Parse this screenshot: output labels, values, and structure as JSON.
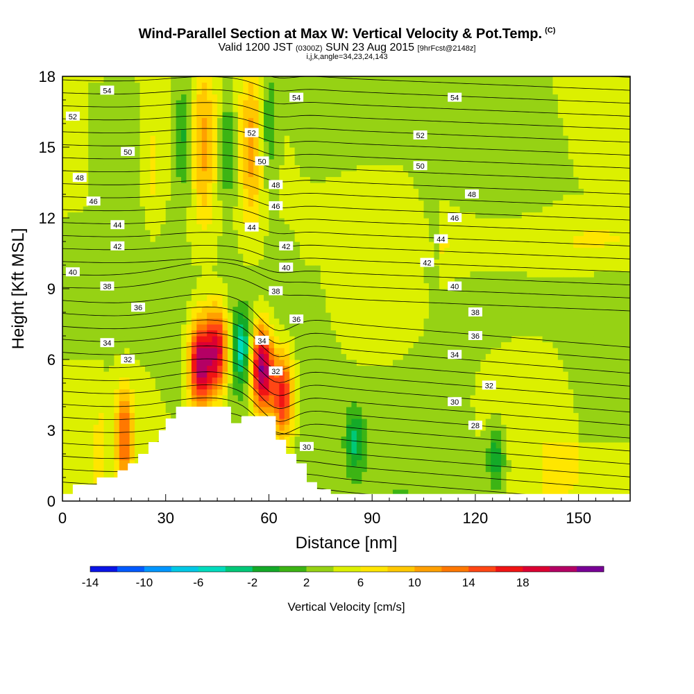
{
  "header": {
    "title": "Wind-Parallel Section at Max W: Vertical Velocity & Pot.Temp.",
    "copyright": "(C)",
    "valid_main": "Valid 1200 JST",
    "valid_utc": "(0300Z)",
    "valid_date": "SUN 23 Aug 2015",
    "forecast": "[9hrFcst@2148z]",
    "indices": "i,j,k,angle=34,23,24,143"
  },
  "chart_data": {
    "type": "heatmap",
    "title": "Wind-Parallel Section at Max W: Vertical Velocity & Pot.Temp.",
    "xlabel": "Distance [nm]",
    "ylabel": "Height [Kft MSL]",
    "xlim": [
      0,
      165
    ],
    "ylim": [
      0,
      18
    ],
    "x_ticks": [
      0,
      30,
      60,
      90,
      120,
      150
    ],
    "y_ticks": [
      0,
      3,
      6,
      9,
      12,
      15,
      18
    ],
    "colorbar": {
      "label": "Vertical Velocity [cm/s]",
      "ticks": [
        -14,
        -10,
        -6,
        -2,
        2,
        6,
        10,
        14,
        18
      ],
      "colors": [
        "#0a14e6",
        "#005aff",
        "#0096ff",
        "#00c8e6",
        "#00dcbe",
        "#00c878",
        "#14aa28",
        "#3cb414",
        "#96d214",
        "#dcf000",
        "#ffe600",
        "#ffc800",
        "#ffa000",
        "#ff7800",
        "#ff4614",
        "#f01414",
        "#dc0032",
        "#b40064",
        "#780096"
      ]
    },
    "velocity_features": [
      {
        "x": 40,
        "z": 5.8,
        "w": 18,
        "sign": "up"
      },
      {
        "x": 45,
        "z": 6.4,
        "w": 16,
        "sign": "up"
      },
      {
        "x": 58,
        "z": 5.6,
        "w": 20,
        "sign": "up"
      },
      {
        "x": 64,
        "z": 4.5,
        "w": 14,
        "sign": "up"
      },
      {
        "x": 52,
        "z": 6.5,
        "w": -8,
        "sign": "down"
      },
      {
        "x": 85,
        "z": 2.6,
        "w": -6,
        "sign": "down"
      },
      {
        "x": 126,
        "z": 1.8,
        "w": -6,
        "sign": "down"
      },
      {
        "x": 18,
        "z": 2.8,
        "w": 10,
        "sign": "up"
      }
    ],
    "theta_labels": [
      {
        "v": "54",
        "x": 13,
        "z": 17.4
      },
      {
        "v": "54",
        "x": 68,
        "z": 17.1
      },
      {
        "v": "54",
        "x": 114,
        "z": 17.1
      },
      {
        "v": "52",
        "x": 3,
        "z": 16.3
      },
      {
        "v": "52",
        "x": 55,
        "z": 15.6
      },
      {
        "v": "52",
        "x": 104,
        "z": 15.5
      },
      {
        "v": "50",
        "x": 19,
        "z": 14.8
      },
      {
        "v": "50",
        "x": 58,
        "z": 14.4
      },
      {
        "v": "50",
        "x": 104,
        "z": 14.2
      },
      {
        "v": "48",
        "x": 5,
        "z": 13.7
      },
      {
        "v": "48",
        "x": 62,
        "z": 13.4
      },
      {
        "v": "48",
        "x": 119,
        "z": 13.0
      },
      {
        "v": "46",
        "x": 9,
        "z": 12.7
      },
      {
        "v": "46",
        "x": 62,
        "z": 12.5
      },
      {
        "v": "46",
        "x": 114,
        "z": 12.0
      },
      {
        "v": "44",
        "x": 16,
        "z": 11.7
      },
      {
        "v": "44",
        "x": 55,
        "z": 11.6
      },
      {
        "v": "44",
        "x": 110,
        "z": 11.1
      },
      {
        "v": "42",
        "x": 16,
        "z": 10.8
      },
      {
        "v": "42",
        "x": 65,
        "z": 10.8
      },
      {
        "v": "42",
        "x": 106,
        "z": 10.1
      },
      {
        "v": "40",
        "x": 3,
        "z": 9.7
      },
      {
        "v": "40",
        "x": 65,
        "z": 9.9
      },
      {
        "v": "40",
        "x": 114,
        "z": 9.1
      },
      {
        "v": "38",
        "x": 13,
        "z": 9.1
      },
      {
        "v": "38",
        "x": 62,
        "z": 8.9
      },
      {
        "v": "38",
        "x": 120,
        "z": 8.0
      },
      {
        "v": "36",
        "x": 22,
        "z": 8.2
      },
      {
        "v": "36",
        "x": 68,
        "z": 7.7
      },
      {
        "v": "36",
        "x": 120,
        "z": 7.0
      },
      {
        "v": "34",
        "x": 13,
        "z": 6.7
      },
      {
        "v": "34",
        "x": 58,
        "z": 6.8
      },
      {
        "v": "34",
        "x": 114,
        "z": 6.2
      },
      {
        "v": "32",
        "x": 19,
        "z": 6.0
      },
      {
        "v": "32",
        "x": 62,
        "z": 5.5
      },
      {
        "v": "32",
        "x": 124,
        "z": 4.9
      },
      {
        "v": "30",
        "x": 114,
        "z": 4.2
      },
      {
        "v": "30",
        "x": 71,
        "z": 2.3
      },
      {
        "v": "28",
        "x": 120,
        "z": 3.2
      }
    ],
    "terrain": [
      [
        0,
        0.3
      ],
      [
        3,
        0.7
      ],
      [
        10,
        1.0
      ],
      [
        16,
        1.3
      ],
      [
        19,
        1.6
      ],
      [
        22,
        2.0
      ],
      [
        25,
        2.5
      ],
      [
        28,
        3.0
      ],
      [
        30,
        3.5
      ],
      [
        33,
        4.0
      ],
      [
        49,
        4.0
      ],
      [
        49,
        3.3
      ],
      [
        52,
        3.3
      ],
      [
        52,
        3.6
      ],
      [
        62,
        3.6
      ],
      [
        62,
        2.6
      ],
      [
        65,
        2.0
      ],
      [
        68,
        1.6
      ],
      [
        71,
        0.8
      ],
      [
        74,
        0.5
      ],
      [
        78,
        0.3
      ],
      [
        165,
        0.3
      ]
    ]
  }
}
